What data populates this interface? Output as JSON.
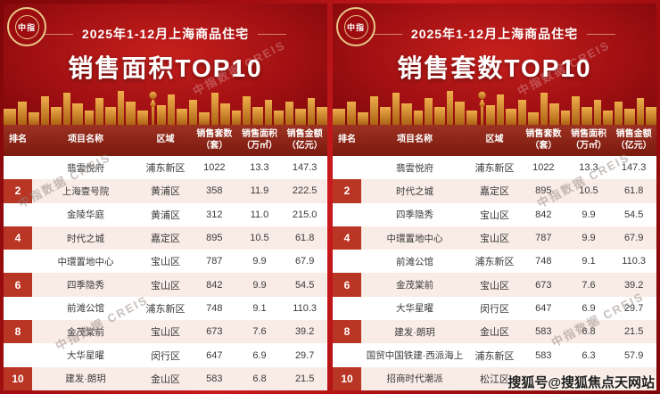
{
  "chart_data": [
    {
      "type": "table",
      "subtitle": "2025年1-12月上海商品住宅",
      "title": "销售面积TOP10",
      "columns": [
        "排名",
        "项目名称",
        "区域",
        "销售套数\n（套）",
        "销售面积\n（万㎡）",
        "销售金额\n（亿元）"
      ],
      "rows": [
        [
          "1",
          "翡雲悦府",
          "浦东新区",
          "1022",
          "13.3",
          "147.3"
        ],
        [
          "2",
          "上海壹号院",
          "黄浦区",
          "358",
          "11.9",
          "222.5"
        ],
        [
          "3",
          "金陵华庭",
          "黄浦区",
          "312",
          "11.0",
          "215.0"
        ],
        [
          "4",
          "时代之城",
          "嘉定区",
          "895",
          "10.5",
          "61.8"
        ],
        [
          "5",
          "中環置地中心",
          "宝山区",
          "787",
          "9.9",
          "67.9"
        ],
        [
          "6",
          "四季隐秀",
          "宝山区",
          "842",
          "9.9",
          "54.5"
        ],
        [
          "7",
          "前滩公馆",
          "浦东新区",
          "748",
          "9.1",
          "110.3"
        ],
        [
          "8",
          "金茂棠前",
          "宝山区",
          "673",
          "7.6",
          "39.2"
        ],
        [
          "9",
          "大华星曜",
          "闵行区",
          "647",
          "6.9",
          "29.7"
        ],
        [
          "10",
          "建发·朗玥",
          "金山区",
          "583",
          "6.8",
          "21.5"
        ]
      ]
    },
    {
      "type": "table",
      "subtitle": "2025年1-12月上海商品住宅",
      "title": "销售套数TOP10",
      "columns": [
        "排名",
        "项目名称",
        "区域",
        "销售套数\n（套）",
        "销售面积\n（万㎡）",
        "销售金额\n（亿元）"
      ],
      "rows": [
        [
          "1",
          "翡雲悦府",
          "浦东新区",
          "1022",
          "13.3",
          "147.3"
        ],
        [
          "2",
          "时代之城",
          "嘉定区",
          "895",
          "10.5",
          "61.8"
        ],
        [
          "3",
          "四季隐秀",
          "宝山区",
          "842",
          "9.9",
          "54.5"
        ],
        [
          "4",
          "中環置地中心",
          "宝山区",
          "787",
          "9.9",
          "67.9"
        ],
        [
          "5",
          "前滩公馆",
          "浦东新区",
          "748",
          "9.1",
          "110.3"
        ],
        [
          "6",
          "金茂棠前",
          "宝山区",
          "673",
          "7.6",
          "39.2"
        ],
        [
          "7",
          "大华星曜",
          "闵行区",
          "647",
          "6.9",
          "29.7"
        ],
        [
          "8",
          "建发·朗玥",
          "金山区",
          "583",
          "6.8",
          "21.5"
        ],
        [
          "9",
          "国贸中国铁建·西派海上",
          "浦东新区",
          "583",
          "6.3",
          "57.9"
        ],
        [
          "10",
          "招商时代潮派",
          "松江区",
          "",
          "",
          ""
        ]
      ]
    }
  ],
  "logo": {
    "text": "中指"
  },
  "watermarks": {
    "diagonal": "中指数据 CREIS",
    "corner": "搜狐号@搜狐焦点天网站"
  },
  "colors": {
    "background_red": "#a50f13",
    "skyline_gold": "#e8a33d",
    "rank_red": "#c23e2a",
    "row_alt": "#f9ece6",
    "header_brown": "#8c2517"
  }
}
